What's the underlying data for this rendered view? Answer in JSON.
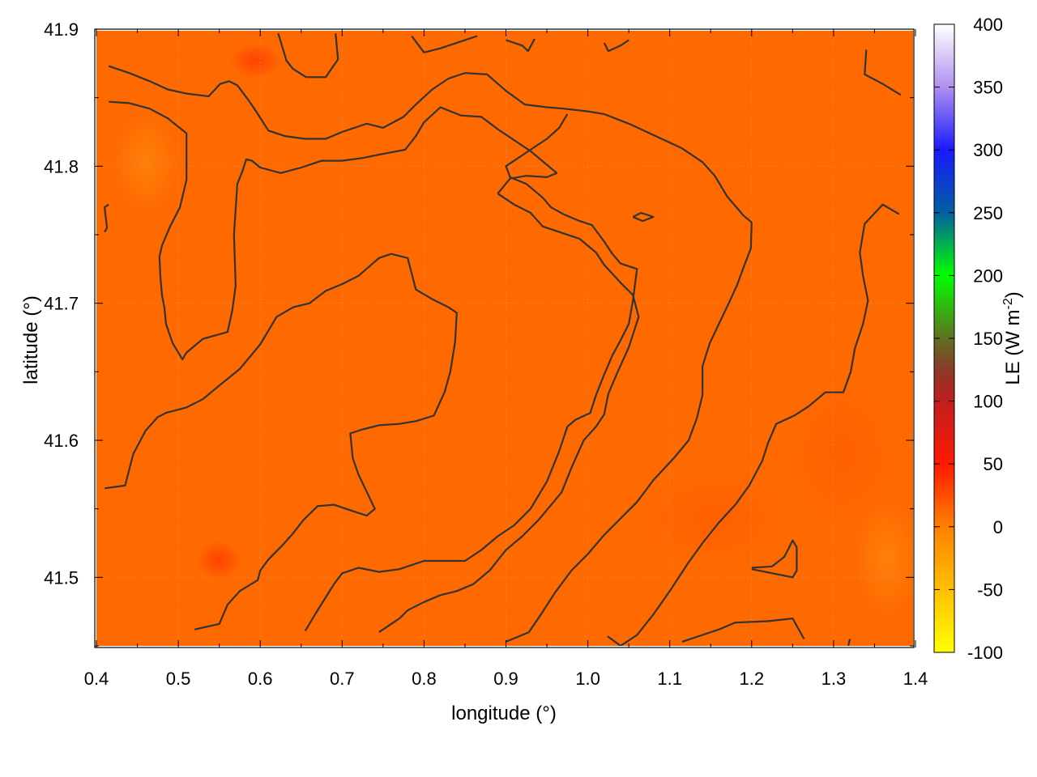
{
  "chart_data": {
    "type": "heatmap",
    "title": "",
    "xlabel": "longitude (°)",
    "ylabel": "latitude (°)",
    "colorbar": {
      "label_main": "LE (W m",
      "label_exp": "-2",
      "label_close": ")",
      "ticks": [
        "-100",
        "-50",
        "0",
        "50",
        "100",
        "150",
        "200",
        "250",
        "300",
        "350",
        "400"
      ],
      "range": [
        -100,
        400
      ],
      "stops": [
        {
          "value": -100,
          "color": "#ffff00"
        },
        {
          "value": -50,
          "color": "#ffc000"
        },
        {
          "value": 0,
          "color": "#ff8000"
        },
        {
          "value": 50,
          "color": "#ff1a00"
        },
        {
          "value": 100,
          "color": "#c01e20"
        },
        {
          "value": 125,
          "color": "#8a3a28"
        },
        {
          "value": 150,
          "color": "#607020"
        },
        {
          "value": 200,
          "color": "#00ff00"
        },
        {
          "value": 250,
          "color": "#0060a0"
        },
        {
          "value": 300,
          "color": "#1a1aff"
        },
        {
          "value": 350,
          "color": "#b090f0"
        },
        {
          "value": 400,
          "color": "#ffffff"
        }
      ]
    },
    "xlim": [
      0.4,
      1.4
    ],
    "ylim": [
      41.45,
      41.9
    ],
    "x_ticks": [
      "0.4",
      "0.5",
      "0.6",
      "0.7",
      "0.8",
      "0.9",
      "1.0",
      "1.1",
      "1.2",
      "1.3",
      "1.4"
    ],
    "y_ticks": [
      "41.5",
      "41.6",
      "41.7",
      "41.8",
      "41.9"
    ],
    "field_color": "#ff6a00",
    "grid": true,
    "contours": [
      [
        [
          0.415,
          41.873
        ],
        [
          0.44,
          41.868
        ],
        [
          0.465,
          41.862
        ],
        [
          0.487,
          41.856
        ],
        [
          0.51,
          41.853
        ],
        [
          0.537,
          41.851
        ],
        [
          0.551,
          41.86
        ],
        [
          0.562,
          41.862
        ],
        [
          0.572,
          41.859
        ],
        [
          0.586,
          41.848
        ],
        [
          0.595,
          41.84
        ],
        [
          0.61,
          41.826
        ],
        [
          0.63,
          41.822
        ],
        [
          0.655,
          41.82
        ],
        [
          0.68,
          41.82
        ],
        [
          0.7,
          41.825
        ],
        [
          0.73,
          41.831
        ],
        [
          0.75,
          41.828
        ],
        [
          0.775,
          41.836
        ],
        [
          0.79,
          41.845
        ],
        [
          0.81,
          41.856
        ],
        [
          0.83,
          41.864
        ],
        [
          0.85,
          41.868
        ],
        [
          0.877,
          41.867
        ],
        [
          0.9,
          41.855
        ],
        [
          0.923,
          41.845
        ],
        [
          0.95,
          41.843
        ],
        [
          0.97,
          41.842
        ],
        [
          1.0,
          41.84
        ],
        [
          1.02,
          41.838
        ],
        [
          1.05,
          41.831
        ],
        [
          1.09,
          41.82
        ],
        [
          1.115,
          41.813
        ],
        [
          1.14,
          41.803
        ],
        [
          1.155,
          41.793
        ],
        [
          1.17,
          41.778
        ],
        [
          1.19,
          41.764
        ],
        [
          1.2,
          41.759
        ]
      ],
      [
        [
          1.2,
          41.759
        ],
        [
          1.199,
          41.74
        ],
        [
          1.19,
          41.726
        ],
        [
          1.182,
          41.713
        ],
        [
          1.172,
          41.7
        ],
        [
          1.16,
          41.685
        ],
        [
          1.149,
          41.671
        ],
        [
          1.14,
          41.654
        ],
        [
          1.14,
          41.633
        ],
        [
          1.133,
          41.616
        ],
        [
          1.123,
          41.6
        ],
        [
          1.105,
          41.587
        ],
        [
          1.08,
          41.571
        ],
        [
          1.06,
          41.555
        ],
        [
          1.04,
          41.543
        ],
        [
          1.02,
          41.531
        ],
        [
          1.0,
          41.517
        ],
        [
          0.98,
          41.505
        ],
        [
          0.96,
          41.489
        ],
        [
          0.945,
          41.475
        ],
        [
          0.928,
          41.46
        ],
        [
          0.9,
          41.453
        ]
      ],
      [
        [
          0.415,
          41.847
        ],
        [
          0.44,
          41.846
        ],
        [
          0.465,
          41.842
        ],
        [
          0.487,
          41.835
        ],
        [
          0.51,
          41.824
        ],
        [
          0.51,
          41.806
        ],
        [
          0.51,
          41.79
        ],
        [
          0.502,
          41.77
        ],
        [
          0.49,
          41.756
        ],
        [
          0.48,
          41.742
        ],
        [
          0.477,
          41.734
        ],
        [
          0.478,
          41.72
        ],
        [
          0.48,
          41.706
        ],
        [
          0.483,
          41.697
        ],
        [
          0.485,
          41.685
        ],
        [
          0.493,
          41.671
        ],
        [
          0.505,
          41.659
        ],
        [
          0.51,
          41.664
        ],
        [
          0.53,
          41.674
        ],
        [
          0.56,
          41.679
        ],
        [
          0.566,
          41.695
        ],
        [
          0.57,
          41.713
        ],
        [
          0.568,
          41.75
        ],
        [
          0.572,
          41.787
        ],
        [
          0.578,
          41.796
        ],
        [
          0.583,
          41.805
        ],
        [
          0.59,
          41.804
        ],
        [
          0.6,
          41.799
        ],
        [
          0.625,
          41.795
        ],
        [
          0.65,
          41.799
        ],
        [
          0.675,
          41.804
        ],
        [
          0.7,
          41.804
        ],
        [
          0.725,
          41.806
        ],
        [
          0.75,
          41.809
        ],
        [
          0.777,
          41.812
        ],
        [
          0.79,
          41.822
        ],
        [
          0.8,
          41.832
        ],
        [
          0.82,
          41.843
        ],
        [
          0.845,
          41.837
        ],
        [
          0.87,
          41.836
        ],
        [
          0.89,
          41.827
        ],
        [
          0.91,
          41.819
        ],
        [
          0.93,
          41.811
        ],
        [
          0.95,
          41.801
        ],
        [
          0.962,
          41.795
        ],
        [
          0.95,
          41.792
        ],
        [
          0.925,
          41.793
        ],
        [
          0.905,
          41.791
        ],
        [
          0.89,
          41.78
        ]
      ],
      [
        [
          0.89,
          41.78
        ],
        [
          0.91,
          41.772
        ],
        [
          0.93,
          41.766
        ],
        [
          0.945,
          41.756
        ],
        [
          0.97,
          41.751
        ],
        [
          0.99,
          41.747
        ],
        [
          1.01,
          41.737
        ],
        [
          1.02,
          41.728
        ],
        [
          1.04,
          41.715
        ],
        [
          1.055,
          41.706
        ],
        [
          1.062,
          41.69
        ],
        [
          1.05,
          41.668
        ],
        [
          1.035,
          41.648
        ],
        [
          1.025,
          41.634
        ],
        [
          1.02,
          41.619
        ],
        [
          1.01,
          41.61
        ],
        [
          0.995,
          41.6
        ],
        [
          0.98,
          41.58
        ],
        [
          0.968,
          41.562
        ],
        [
          0.94,
          41.542
        ],
        [
          0.92,
          41.53
        ],
        [
          0.9,
          41.52
        ],
        [
          0.88,
          41.505
        ],
        [
          0.86,
          41.495
        ],
        [
          0.84,
          41.49
        ],
        [
          0.82,
          41.487
        ],
        [
          0.8,
          41.482
        ],
        [
          0.78,
          41.476
        ],
        [
          0.77,
          41.47
        ],
        [
          0.745,
          41.46
        ]
      ],
      [
        [
          0.41,
          41.565
        ],
        [
          0.435,
          41.567
        ],
        [
          0.445,
          41.59
        ],
        [
          0.46,
          41.607
        ],
        [
          0.475,
          41.617
        ],
        [
          0.485,
          41.62
        ],
        [
          0.51,
          41.624
        ],
        [
          0.53,
          41.63
        ],
        [
          0.55,
          41.64
        ],
        [
          0.575,
          41.652
        ],
        [
          0.6,
          41.67
        ],
        [
          0.62,
          41.69
        ],
        [
          0.64,
          41.697
        ],
        [
          0.66,
          41.7
        ],
        [
          0.68,
          41.709
        ],
        [
          0.7,
          41.714
        ],
        [
          0.72,
          41.72
        ],
        [
          0.745,
          41.733
        ],
        [
          0.76,
          41.736
        ],
        [
          0.78,
          41.733
        ],
        [
          0.79,
          41.71
        ],
        [
          0.81,
          41.703
        ],
        [
          0.83,
          41.697
        ],
        [
          0.84,
          41.693
        ],
        [
          0.838,
          41.672
        ],
        [
          0.832,
          41.65
        ],
        [
          0.825,
          41.635
        ],
        [
          0.812,
          41.618
        ],
        [
          0.79,
          41.614
        ],
        [
          0.77,
          41.612
        ],
        [
          0.745,
          41.611
        ],
        [
          0.725,
          41.608
        ],
        [
          0.71,
          41.605
        ],
        [
          0.713,
          41.587
        ],
        [
          0.72,
          41.575
        ],
        [
          0.74,
          41.55
        ],
        [
          0.73,
          41.545
        ],
        [
          0.71,
          41.549
        ],
        [
          0.69,
          41.553
        ],
        [
          0.67,
          41.552
        ],
        [
          0.653,
          41.542
        ],
        [
          0.64,
          41.532
        ],
        [
          0.628,
          41.524
        ],
        [
          0.61,
          41.513
        ],
        [
          0.6,
          41.505
        ],
        [
          0.597,
          41.498
        ],
        [
          0.575,
          41.49
        ],
        [
          0.56,
          41.48
        ],
        [
          0.55,
          41.466
        ],
        [
          0.52,
          41.462
        ]
      ],
      [
        [
          0.655,
          41.461
        ],
        [
          0.67,
          41.476
        ],
        [
          0.69,
          41.495
        ],
        [
          0.7,
          41.503
        ],
        [
          0.72,
          41.507
        ],
        [
          0.745,
          41.504
        ],
        [
          0.77,
          41.506
        ],
        [
          0.8,
          41.512
        ],
        [
          0.83,
          41.512
        ],
        [
          0.85,
          41.512
        ],
        [
          0.87,
          41.52
        ],
        [
          0.89,
          41.53
        ],
        [
          0.91,
          41.538
        ],
        [
          0.93,
          41.55
        ],
        [
          0.95,
          41.57
        ],
        [
          0.965,
          41.592
        ],
        [
          0.975,
          41.61
        ],
        [
          0.985,
          41.615
        ],
        [
          1.003,
          41.62
        ],
        [
          1.01,
          41.633
        ],
        [
          1.02,
          41.648
        ],
        [
          1.03,
          41.662
        ],
        [
          1.04,
          41.673
        ],
        [
          1.05,
          41.685
        ],
        [
          1.055,
          41.702
        ],
        [
          1.06,
          41.725
        ],
        [
          1.04,
          41.729
        ],
        [
          1.03,
          41.736
        ],
        [
          1.02,
          41.745
        ],
        [
          1.005,
          41.757
        ],
        [
          0.99,
          41.76
        ],
        [
          0.97,
          41.765
        ],
        [
          0.955,
          41.77
        ],
        [
          0.945,
          41.777
        ],
        [
          0.925,
          41.787
        ],
        [
          0.905,
          41.792
        ],
        [
          0.9,
          41.8
        ],
        [
          0.93,
          41.812
        ],
        [
          0.95,
          41.82
        ],
        [
          0.965,
          41.828
        ],
        [
          0.975,
          41.838
        ]
      ],
      [
        [
          0.622,
          41.897
        ],
        [
          0.632,
          41.877
        ],
        [
          0.64,
          41.871
        ],
        [
          0.656,
          41.865
        ],
        [
          0.68,
          41.865
        ],
        [
          0.695,
          41.878
        ],
        [
          0.692,
          41.897
        ]
      ],
      [
        [
          0.785,
          41.895
        ],
        [
          0.8,
          41.883
        ],
        [
          0.82,
          41.886
        ],
        [
          0.84,
          41.89
        ],
        [
          0.865,
          41.895
        ]
      ],
      [
        [
          0.9,
          41.892
        ],
        [
          0.92,
          41.888
        ],
        [
          0.927,
          41.884
        ],
        [
          0.935,
          41.893
        ]
      ],
      [
        [
          1.02,
          41.89
        ],
        [
          1.025,
          41.884
        ],
        [
          1.04,
          41.888
        ],
        [
          1.05,
          41.892
        ]
      ],
      [
        [
          1.34,
          41.885
        ],
        [
          1.338,
          41.867
        ],
        [
          1.36,
          41.86
        ],
        [
          1.382,
          41.852
        ]
      ],
      [
        [
          1.38,
          41.765
        ],
        [
          1.36,
          41.772
        ],
        [
          1.338,
          41.758
        ],
        [
          1.332,
          41.737
        ],
        [
          1.336,
          41.72
        ],
        [
          1.342,
          41.702
        ],
        [
          1.336,
          41.685
        ],
        [
          1.326,
          41.667
        ],
        [
          1.321,
          41.65
        ],
        [
          1.312,
          41.635
        ],
        [
          1.29,
          41.635
        ],
        [
          1.27,
          41.625
        ],
        [
          1.252,
          41.618
        ],
        [
          1.23,
          41.612
        ],
        [
          1.22,
          41.598
        ],
        [
          1.213,
          41.585
        ],
        [
          1.197,
          41.567
        ],
        [
          1.18,
          41.553
        ],
        [
          1.16,
          41.54
        ],
        [
          1.14,
          41.525
        ],
        [
          1.122,
          41.51
        ],
        [
          1.1,
          41.49
        ],
        [
          1.08,
          41.473
        ],
        [
          1.06,
          41.458
        ],
        [
          1.04,
          41.45
        ],
        [
          1.024,
          41.457
        ]
      ],
      [
        [
          1.2,
          41.507
        ],
        [
          1.225,
          41.508
        ],
        [
          1.24,
          41.515
        ],
        [
          1.25,
          41.527
        ],
        [
          1.255,
          41.522
        ],
        [
          1.255,
          41.505
        ],
        [
          1.25,
          41.5
        ],
        [
          1.2,
          41.506
        ]
      ],
      [
        [
          1.115,
          41.453
        ],
        [
          1.14,
          41.458
        ],
        [
          1.16,
          41.462
        ],
        [
          1.18,
          41.467
        ],
        [
          1.22,
          41.468
        ],
        [
          1.25,
          41.47
        ],
        [
          1.264,
          41.455
        ]
      ],
      [
        [
          1.055,
          41.763
        ],
        [
          1.065,
          41.766
        ],
        [
          1.08,
          41.763
        ],
        [
          1.067,
          41.76
        ],
        [
          1.055,
          41.763
        ]
      ],
      [
        [
          0.415,
          41.772
        ],
        [
          0.41,
          41.77
        ],
        [
          0.413,
          41.755
        ],
        [
          0.41,
          41.752
        ]
      ],
      [
        [
          1.32,
          41.455
        ],
        [
          1.318,
          41.45
        ]
      ]
    ]
  }
}
